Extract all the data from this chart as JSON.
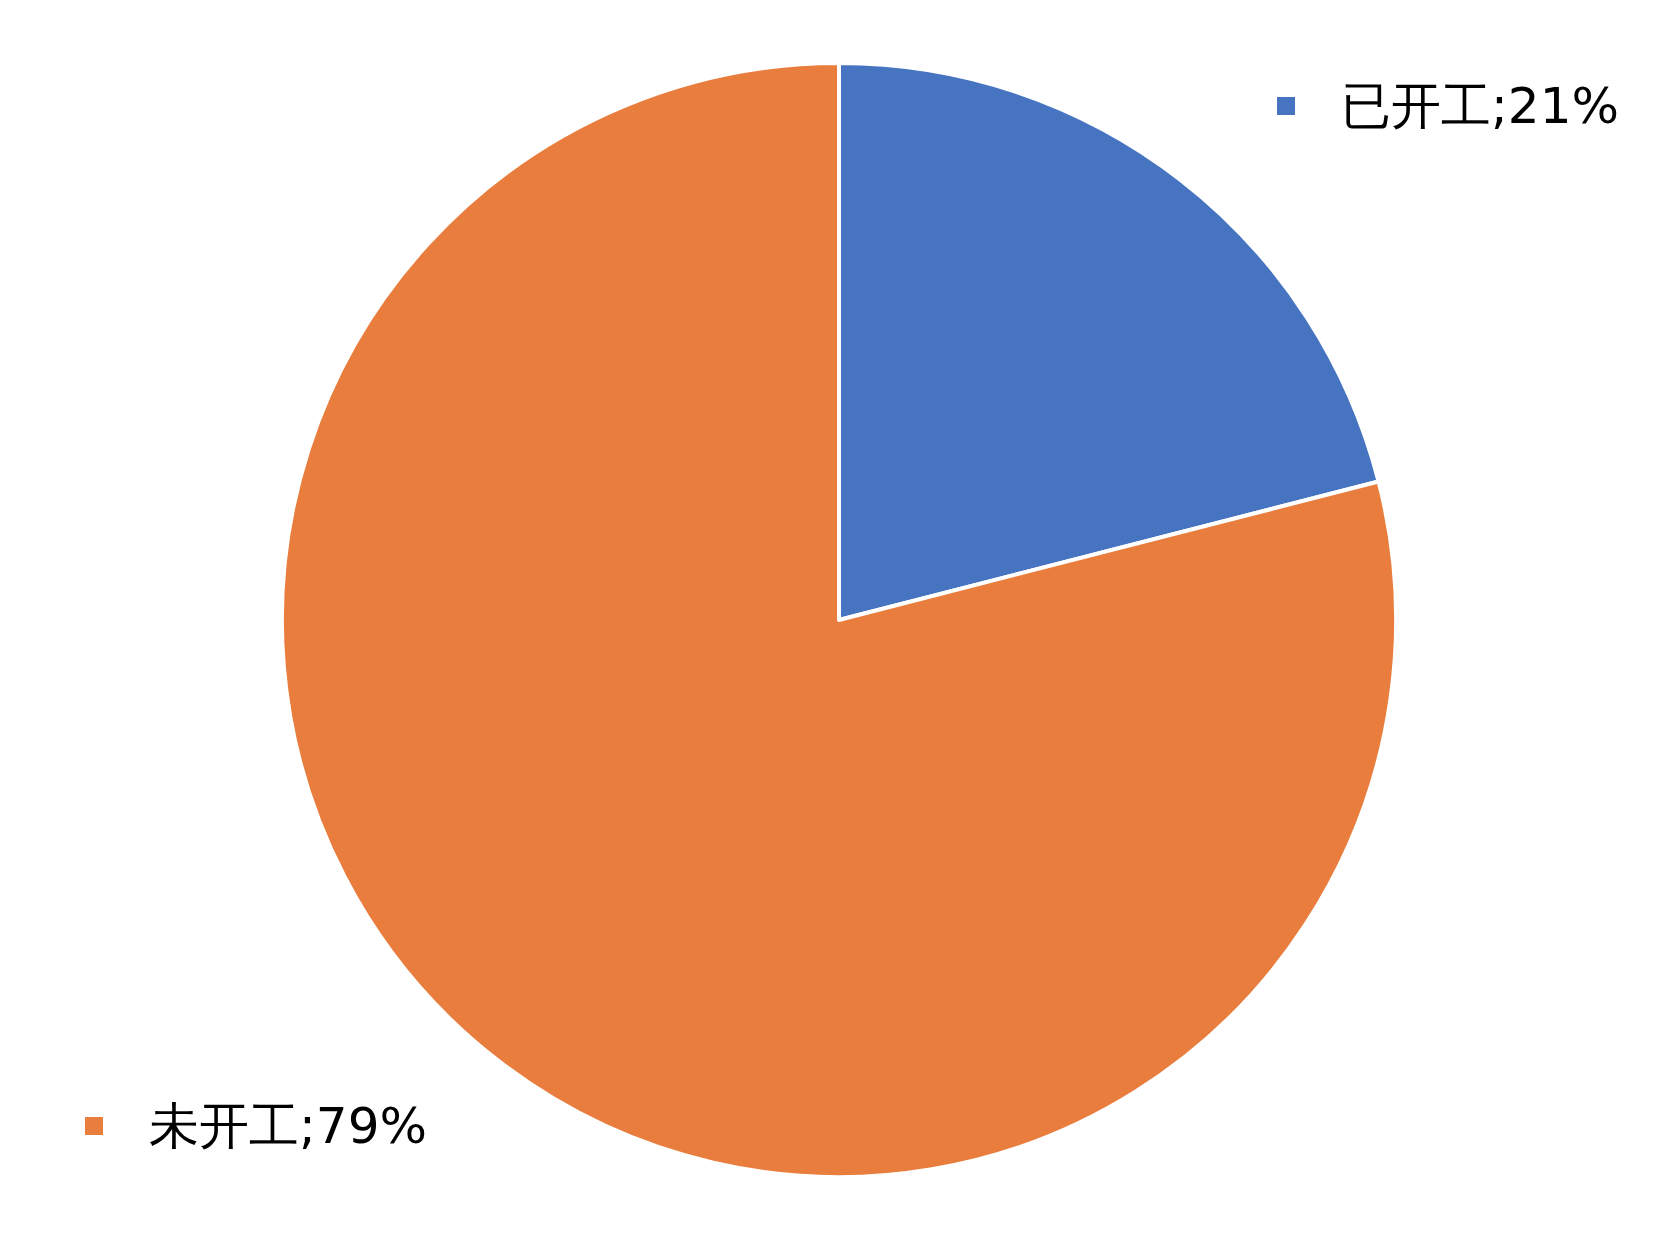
{
  "chart_data": {
    "type": "pie",
    "categories": [
      "已开工",
      "未开工"
    ],
    "values": [
      21,
      79
    ],
    "colors": [
      "#4674c1",
      "#e97d3d"
    ],
    "value_labels": [
      "21%",
      "79%"
    ],
    "legend": "top right"
  }
}
